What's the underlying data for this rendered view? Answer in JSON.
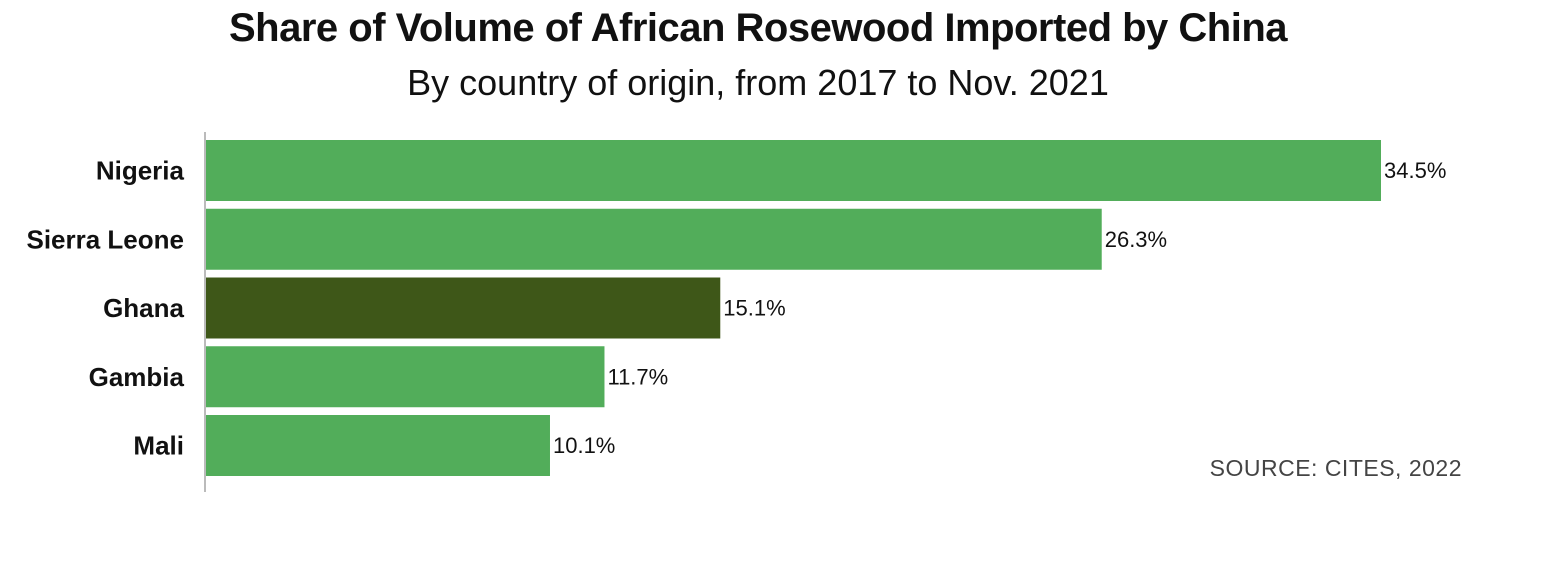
{
  "chart_data": {
    "type": "bar",
    "orientation": "horizontal",
    "title": "Share of Volume of African Rosewood Imported by China",
    "subtitle": "By country of origin, from 2017 to Nov. 2021",
    "categories": [
      "Nigeria",
      "Sierra Leone",
      "Ghana",
      "Gambia",
      "Mali"
    ],
    "values": [
      34.5,
      26.3,
      15.1,
      11.7,
      10.1
    ],
    "value_labels": [
      "34.5%",
      "26.3%",
      "15.1%",
      "11.7%",
      "10.1%"
    ],
    "highlight_category": "Ghana",
    "colors": {
      "default": "#52ad5a",
      "highlight": "#3e5718"
    },
    "xlim": [
      0,
      34.5
    ],
    "grid": false,
    "source": "SOURCE: CITES, 2022"
  }
}
